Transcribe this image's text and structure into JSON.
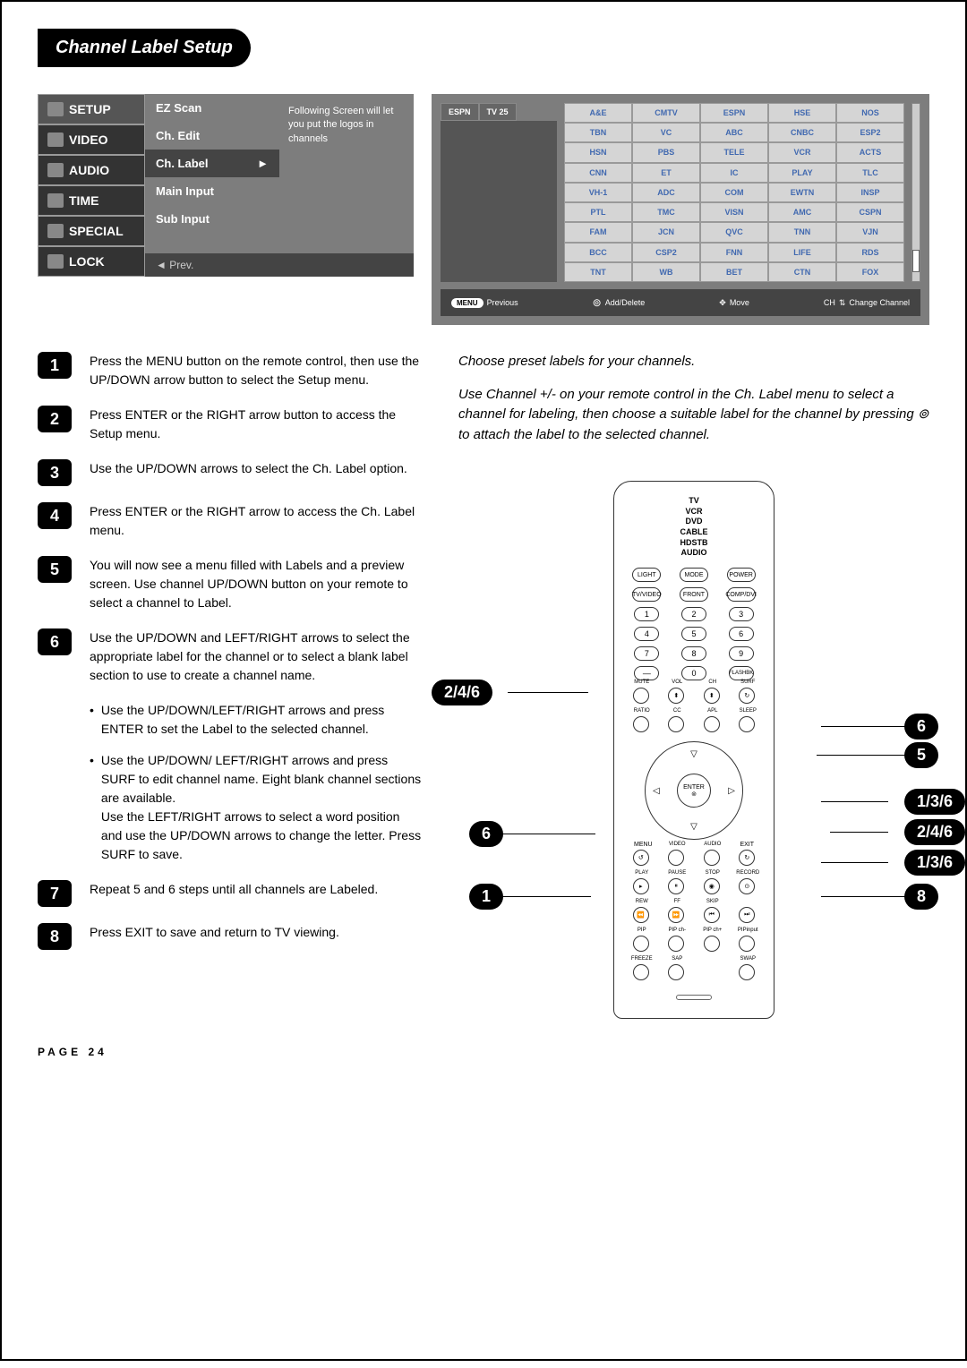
{
  "title": "Channel Label Setup",
  "page_label": "PAGE 24",
  "menu": {
    "left_items": [
      "SETUP",
      "VIDEO",
      "AUDIO",
      "TIME",
      "SPECIAL",
      "LOCK"
    ],
    "sub_items": [
      "EZ Scan",
      "Ch. Edit",
      "Ch. Label",
      "Main Input",
      "Sub Input"
    ],
    "selected_sub": "Ch. Label",
    "description": "Following Screen will let you put the logos in channels",
    "footer": "◄ Prev."
  },
  "preview": {
    "tabs": [
      "ESPN",
      "TV 25"
    ],
    "labels": [
      "A&E",
      "CMTV",
      "ESPN",
      "HSE",
      "NOS",
      "TBN",
      "VC",
      "ABC",
      "CNBC",
      "ESP2",
      "HSN",
      "PBS",
      "TELE",
      "VCR",
      "ACTS",
      "CNN",
      "ET",
      "IC",
      "PLAY",
      "TLC",
      "VH-1",
      "ADC",
      "COM",
      "EWTN",
      "INSP",
      "PTL",
      "TMC",
      "VISN",
      "AMC",
      "CSPN",
      "FAM",
      "JCN",
      "QVC",
      "TNN",
      "VJN",
      "BCC",
      "CSP2",
      "FNN",
      "LIFE",
      "RDS",
      "TNT",
      "WB",
      "BET",
      "CTN",
      "FOX"
    ],
    "footer": {
      "prev": "Previous",
      "prev_pill": "MENU",
      "add": "Add/Delete",
      "move": "Move",
      "change": "Change Channel",
      "change_prefix": "CH"
    }
  },
  "captions": [
    "Choose preset labels for your channels.",
    "Use Channel +/- on your remote control in the Ch. Label menu to select a channel for labeling, then choose a suitable label for the channel by pressing ⊚ to attach the label to the selected channel."
  ],
  "steps": [
    "Press the MENU button on the remote control, then use the UP/DOWN arrow button to select the Setup menu.",
    "Press ENTER or the RIGHT arrow button to access the Setup menu.",
    "Use the UP/DOWN arrows to select the Ch. Label option.",
    "Press ENTER or the RIGHT arrow to access the Ch. Label menu.",
    "You will now see a menu filled with Labels and a preview screen. Use channel UP/DOWN button on your remote to select a channel to Label.",
    "Use the UP/DOWN and LEFT/RIGHT arrows to select the appropriate label for the channel or to select  a blank label section to use to create a channel name."
  ],
  "bullets": [
    "Use the UP/DOWN/LEFT/RIGHT arrows and press ENTER to set the Label to the selected channel.",
    "Use the UP/DOWN/ LEFT/RIGHT arrows and press SURF to edit channel name. Eight blank channel sections are available.\nUse the LEFT/RIGHT arrows to select a word position and use the UP/DOWN arrows to change the letter. Press SURF to save."
  ],
  "steps_after": [
    "Repeat 5 and 6 steps until all channels are Labeled.",
    "Press EXIT to save and return to TV viewing."
  ],
  "remote": {
    "modes": [
      "TV",
      "VCR",
      "DVD",
      "CABLE",
      "HDSTB",
      "AUDIO"
    ],
    "top_row1": [
      "LIGHT",
      "MODE",
      "POWER"
    ],
    "top_row2": [
      "TV/VIDEO",
      "FRONT",
      "COMP/DVI"
    ],
    "mid_labels": {
      "mute": "MUTE",
      "vol": "VOL",
      "ch": "CH",
      "surf": "SURF",
      "ratio": "RATIO",
      "cc": "CC",
      "apl": "APL",
      "sleep": "SLEEP"
    },
    "enter": "ENTER",
    "menu": "MENU",
    "exit": "EXIT",
    "video": "VIDEO",
    "audio": "AUDIO",
    "transport": [
      "PLAY",
      "PAUSE",
      "STOP",
      "RECORD"
    ],
    "transport2": [
      "REW",
      "FF",
      "SKIP"
    ],
    "bottom": [
      "PIP",
      "PIP ch-",
      "PIP ch+",
      "PIPinput"
    ],
    "bottom2": [
      "FREEZE",
      "SAP",
      "",
      "SWAP"
    ]
  },
  "callouts": {
    "c1": "2/4/6",
    "c2": "6",
    "c3": "6",
    "c4": "5",
    "c5": "1/3/6",
    "c6": "2/4/6",
    "c7": "1/3/6",
    "c8": "1",
    "c9": "8"
  },
  "colors": {
    "menu_bg": "#7d7d7d",
    "label_text": "#4169b0",
    "label_bg": "#d5d5d5"
  }
}
